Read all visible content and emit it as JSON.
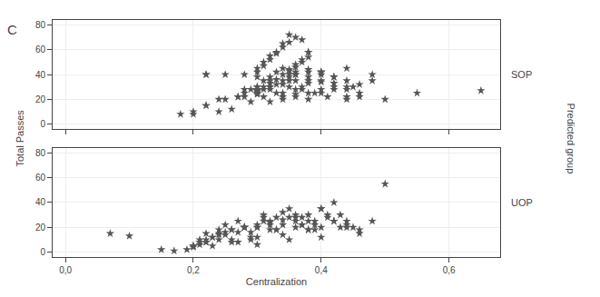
{
  "chart_data": [
    {
      "type": "scatter",
      "title": "C",
      "ylabel": "Total Passes",
      "annotations": [
        "SOP",
        "Predicted group"
      ],
      "x": [
        0.28,
        0.3,
        0.31,
        0.32,
        0.33,
        0.34,
        0.35,
        0.3,
        0.31,
        0.32,
        0.33,
        0.34,
        0.35,
        0.36,
        0.37,
        0.38,
        0.29,
        0.3,
        0.31,
        0.32,
        0.33,
        0.35,
        0.36,
        0.37,
        0.38,
        0.3,
        0.31,
        0.32,
        0.33,
        0.34,
        0.35,
        0.36,
        0.37,
        0.38,
        0.4,
        0.3,
        0.31,
        0.33,
        0.34,
        0.35,
        0.36,
        0.38,
        0.4,
        0.42,
        0.27,
        0.28,
        0.3,
        0.32,
        0.34,
        0.36,
        0.38,
        0.4,
        0.42,
        0.44,
        0.46,
        0.2,
        0.22,
        0.24,
        0.28,
        0.3,
        0.32,
        0.36,
        0.4,
        0.44,
        0.48,
        0.18,
        0.22,
        0.35,
        0.38,
        0.44,
        0.5,
        0.65,
        0.3,
        0.32,
        0.34,
        0.36,
        0.38,
        0.4,
        0.42,
        0.44,
        0.46,
        0.28,
        0.3,
        0.32,
        0.34,
        0.36,
        0.38,
        0.4,
        0.42,
        0.44,
        0.25,
        0.3,
        0.35,
        0.4,
        0.45,
        0.22,
        0.55,
        0.3,
        0.32,
        0.34,
        0.36,
        0.37,
        0.38,
        0.4,
        0.42,
        0.44,
        0.46,
        0.48,
        0.25,
        0.27,
        0.29,
        0.31,
        0.33,
        0.35,
        0.37,
        0.39,
        0.41,
        0.2,
        0.22,
        0.24,
        0.26,
        0.38,
        0.36,
        0.34
      ],
      "values": [
        40,
        45,
        50,
        55,
        57,
        65,
        72,
        42,
        47,
        52,
        58,
        62,
        66,
        70,
        68,
        58,
        28,
        30,
        35,
        38,
        42,
        44,
        48,
        52,
        58,
        27,
        30,
        33,
        36,
        40,
        43,
        46,
        50,
        54,
        42,
        25,
        28,
        32,
        35,
        38,
        42,
        44,
        42,
        38,
        22,
        25,
        28,
        30,
        32,
        35,
        38,
        40,
        38,
        35,
        32,
        10,
        15,
        20,
        28,
        30,
        35,
        40,
        42,
        45,
        40,
        8,
        40,
        40,
        35,
        30,
        20,
        27,
        26,
        28,
        22,
        24,
        20,
        25,
        28,
        22,
        25,
        22,
        24,
        18,
        20,
        22,
        25,
        28,
        30,
        28,
        40,
        38,
        35,
        34,
        30,
        40,
        25,
        27,
        30,
        25,
        28,
        30,
        33,
        35,
        33,
        20,
        22,
        35,
        20,
        22,
        18,
        22,
        25,
        30,
        28,
        25,
        22,
        8,
        15,
        10,
        12,
        42,
        40,
        45
      ],
      "color": "#555555",
      "marker": "star",
      "xlim": [
        -0.02,
        0.68
      ],
      "ylim": [
        -4,
        84
      ],
      "xticks": [
        0.0,
        0.2,
        0.4,
        0.6
      ],
      "yticks": [
        0,
        20,
        40,
        60,
        80
      ],
      "grid": true,
      "tick_labels": "y"
    },
    {
      "type": "scatter",
      "xlabel": "Centralization",
      "annotations": [
        "UOP"
      ],
      "x": [
        0.07,
        0.1,
        0.15,
        0.17,
        0.19,
        0.2,
        0.21,
        0.22,
        0.23,
        0.24,
        0.2,
        0.21,
        0.22,
        0.23,
        0.24,
        0.25,
        0.26,
        0.27,
        0.28,
        0.29,
        0.3,
        0.21,
        0.22,
        0.23,
        0.24,
        0.25,
        0.26,
        0.27,
        0.28,
        0.29,
        0.3,
        0.25,
        0.26,
        0.27,
        0.28,
        0.29,
        0.3,
        0.31,
        0.32,
        0.33,
        0.34,
        0.35,
        0.3,
        0.31,
        0.32,
        0.33,
        0.34,
        0.35,
        0.36,
        0.37,
        0.38,
        0.39,
        0.4,
        0.31,
        0.32,
        0.33,
        0.34,
        0.35,
        0.36,
        0.37,
        0.38,
        0.39,
        0.4,
        0.41,
        0.42,
        0.43,
        0.44,
        0.36,
        0.37,
        0.38,
        0.39,
        0.4,
        0.41,
        0.42,
        0.43,
        0.44,
        0.45,
        0.46,
        0.42,
        0.44,
        0.46,
        0.48,
        0.5,
        0.2,
        0.22,
        0.24,
        0.26,
        0.28,
        0.3,
        0.32,
        0.34,
        0.36,
        0.38,
        0.4
      ],
      "values": [
        15,
        13,
        2,
        1,
        2,
        4,
        6,
        8,
        5,
        10,
        5,
        8,
        10,
        12,
        14,
        16,
        10,
        8,
        20,
        12,
        6,
        10,
        15,
        12,
        18,
        14,
        8,
        16,
        20,
        10,
        22,
        22,
        18,
        25,
        20,
        16,
        12,
        28,
        24,
        18,
        14,
        10,
        20,
        25,
        22,
        18,
        26,
        28,
        30,
        22,
        18,
        25,
        35,
        30,
        25,
        28,
        32,
        35,
        28,
        22,
        25,
        18,
        20,
        30,
        25,
        20,
        22,
        25,
        28,
        30,
        22,
        35,
        28,
        40,
        30,
        25,
        20,
        15,
        25,
        20,
        18,
        25,
        55,
        5,
        8,
        15,
        18,
        20,
        20,
        18,
        22,
        20,
        18,
        12
      ],
      "color": "#555555",
      "marker": "star",
      "xlim": [
        -0.02,
        0.68
      ],
      "ylim": [
        -4,
        84
      ],
      "xticks": [
        {
          "value": 0.0,
          "label": "0,0"
        },
        {
          "value": 0.2,
          "label": "0,2"
        },
        {
          "value": 0.4,
          "label": "0,4"
        },
        {
          "value": 0.6,
          "label": "0,6"
        }
      ],
      "yticks": [
        0,
        20,
        40,
        60,
        80
      ],
      "grid": true
    }
  ]
}
